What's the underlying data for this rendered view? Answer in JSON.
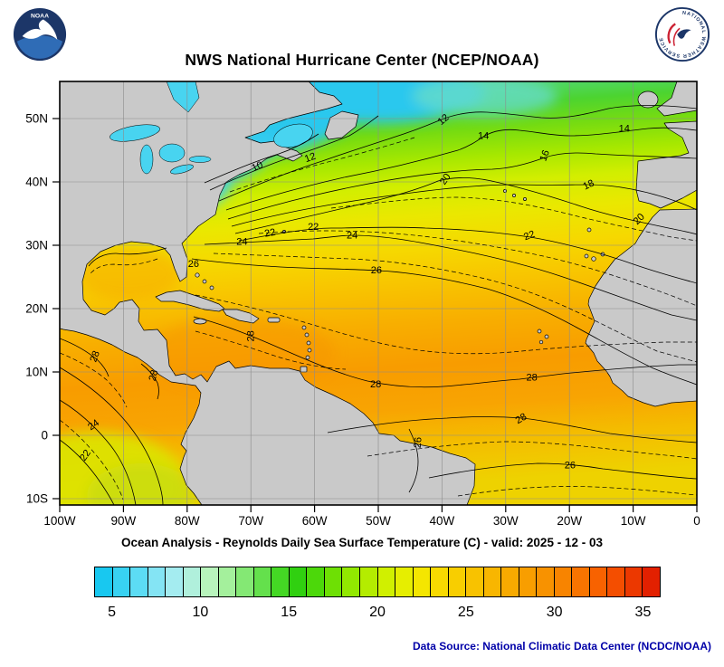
{
  "header": {
    "title": "NWS National Hurricane Center (NCEP/NOAA)",
    "noaa_logo_text": "NOAA",
    "nws_logo_text": "NATIONAL WEATHER SERVICE"
  },
  "map": {
    "subtitle": "Ocean Analysis - Reynolds Daily Sea Surface Temperature (C) - valid: 2025 - 12 - 03",
    "lon_ticks": [
      "100W",
      "90W",
      "80W",
      "70W",
      "60W",
      "50W",
      "40W",
      "30W",
      "20W",
      "10W",
      "0"
    ],
    "lat_ticks": [
      "10S",
      "0",
      "10N",
      "20N",
      "30N",
      "40N",
      "50N"
    ],
    "contour_labels": [
      {
        "t": "10",
        "lon": 69.0,
        "lat": 42.6,
        "rot": -25
      },
      {
        "t": "12",
        "lon": 60.7,
        "lat": 44.0,
        "rot": -20
      },
      {
        "t": "12",
        "lon": 39.8,
        "lat": 50.0,
        "rot": -40
      },
      {
        "t": "14",
        "lon": 33.5,
        "lat": 47.4,
        "rot": 0
      },
      {
        "t": "14",
        "lon": 11.4,
        "lat": 48.6,
        "rot": 0
      },
      {
        "t": "16",
        "lon": 23.9,
        "lat": 44.3,
        "rot": -70
      },
      {
        "t": "18",
        "lon": 17.0,
        "lat": 39.7,
        "rot": -25
      },
      {
        "t": "20",
        "lon": 39.5,
        "lat": 40.6,
        "rot": -55
      },
      {
        "t": "20",
        "lon": 9.1,
        "lat": 34.3,
        "rot": -45
      },
      {
        "t": "22",
        "lon": 67.0,
        "lat": 32.1,
        "rot": -10
      },
      {
        "t": "22",
        "lon": 60.2,
        "lat": 33.1,
        "rot": 0
      },
      {
        "t": "22",
        "lon": 26.3,
        "lat": 31.7,
        "rot": -20
      },
      {
        "t": "24",
        "lon": 71.4,
        "lat": 30.7,
        "rot": 0
      },
      {
        "t": "24",
        "lon": 54.1,
        "lat": 31.7,
        "rot": 0
      },
      {
        "t": "26",
        "lon": 79.0,
        "lat": 27.2,
        "rot": 0
      },
      {
        "t": "26",
        "lon": 50.3,
        "lat": 26.2,
        "rot": 0
      },
      {
        "t": "28",
        "lon": 94.5,
        "lat": 12.6,
        "rot": -70
      },
      {
        "t": "28",
        "lon": 85.3,
        "lat": 9.6,
        "rot": -75
      },
      {
        "t": "28",
        "lon": 70.0,
        "lat": 15.8,
        "rot": -90
      },
      {
        "t": "28",
        "lon": 50.4,
        "lat": 8.2,
        "rot": 0
      },
      {
        "t": "28",
        "lon": 25.9,
        "lat": 9.3,
        "rot": 0
      },
      {
        "t": "28",
        "lon": 27.6,
        "lat": 2.8,
        "rot": -30
      },
      {
        "t": "26",
        "lon": 19.9,
        "lat": -4.6,
        "rot": 0
      },
      {
        "t": "26",
        "lon": 43.8,
        "lat": -1.0,
        "rot": -85
      },
      {
        "t": "24",
        "lon": 94.7,
        "lat": 1.8,
        "rot": -35
      },
      {
        "t": "22",
        "lon": 96.0,
        "lat": -3.0,
        "rot": -55
      }
    ]
  },
  "colorbar": {
    "min": 4,
    "max": 36,
    "ticks": [
      5,
      10,
      15,
      20,
      25,
      30,
      35
    ],
    "colors": [
      "#18c8f0",
      "#38d2f2",
      "#5cdcf4",
      "#84e4f4",
      "#a4ecf0",
      "#b0f0dc",
      "#b8f4bc",
      "#a4f09c",
      "#84e874",
      "#64e04c",
      "#44d824",
      "#30d010",
      "#4cd80a",
      "#6ee004",
      "#92e800",
      "#b4ec00",
      "#d0f000",
      "#e6ee00",
      "#f4e600",
      "#f8da00",
      "#f8ce00",
      "#f8c200",
      "#f8b600",
      "#f8aa00",
      "#f89e00",
      "#f89200",
      "#f88400",
      "#f87400",
      "#f86200",
      "#f44e00",
      "#ec3800",
      "#e22000"
    ]
  },
  "footer": {
    "data_source": "Data Source: National Climatic Data Center (NCDC/NOAA)"
  },
  "chart_data": {
    "type": "heatmap",
    "title": "NWS National Hurricane Center (NCEP/NOAA)",
    "subtitle": "Ocean Analysis - Reynolds Daily Sea Surface Temperature (C) - valid: 2025 - 12 - 03",
    "x_ticks": [
      "100W",
      "90W",
      "80W",
      "70W",
      "60W",
      "50W",
      "40W",
      "30W",
      "20W",
      "10W",
      "0"
    ],
    "y_ticks": [
      "10S",
      "0",
      "10N",
      "20N",
      "30N",
      "40N",
      "50N"
    ],
    "colorbar_range_c": [
      4,
      36
    ],
    "colorbar_tick_values_c": [
      5,
      10,
      15,
      20,
      25,
      30,
      35
    ],
    "labeled_isotherms_c": [
      10,
      12,
      14,
      16,
      18,
      20,
      22,
      24,
      26,
      28
    ],
    "legend_position": "bottom"
  }
}
